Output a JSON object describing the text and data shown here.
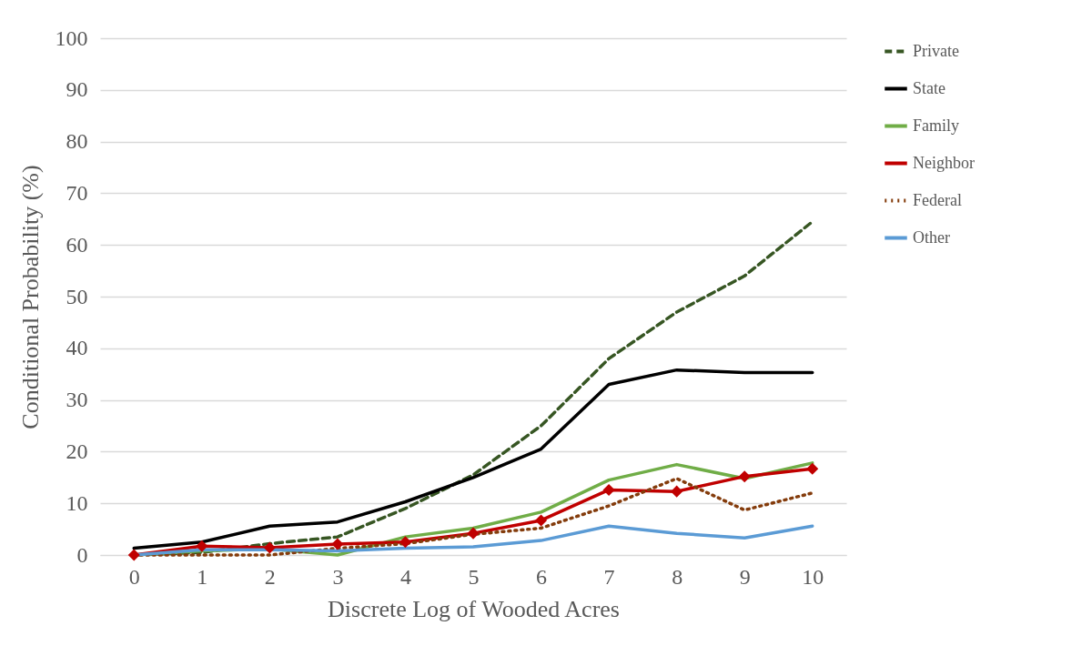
{
  "chart_data": {
    "type": "line",
    "xlabel": "Discrete Log of Wooded Acres",
    "ylabel": "Conditional Probability (%)",
    "categories": [
      "0",
      "1",
      "2",
      "3",
      "4",
      "5",
      "6",
      "7",
      "8",
      "9",
      "10"
    ],
    "ylim": [
      0,
      100
    ],
    "yticks": [
      0,
      10,
      20,
      30,
      40,
      50,
      60,
      70,
      80,
      90,
      100
    ],
    "grid": "y",
    "legend": "right",
    "series": [
      {
        "name": "Private",
        "color": "#375623",
        "line_style": "dashed",
        "values": [
          0,
          0.5,
          2.2,
          3.5,
          9,
          15.5,
          25,
          38,
          47,
          54,
          64.5
        ]
      },
      {
        "name": "State",
        "color": "#000000",
        "line_style": "solid",
        "values": [
          1.3,
          2.5,
          5.6,
          6.4,
          10.3,
          15,
          20.5,
          33,
          35.8,
          35.3,
          35.3
        ]
      },
      {
        "name": "Family",
        "color": "#70ad47",
        "line_style": "solid",
        "values": [
          0,
          0.8,
          1.2,
          0,
          3.5,
          5.2,
          8.3,
          14.5,
          17.5,
          14.8,
          17.8
        ]
      },
      {
        "name": "Neighbor",
        "color": "#c00000",
        "line_style": "solid",
        "marker": "diamond",
        "values": [
          0,
          1.7,
          1.4,
          2.1,
          2.5,
          4.2,
          6.7,
          12.6,
          12.3,
          15.2,
          16.7
        ]
      },
      {
        "name": "Federal",
        "color": "#843c0c",
        "line_style": "dotted",
        "values": [
          0,
          0,
          0,
          1.3,
          2.2,
          4,
          5.2,
          9.5,
          14.8,
          8.7,
          12
        ]
      },
      {
        "name": "Other",
        "color": "#5b9bd5",
        "line_style": "solid",
        "values": [
          0,
          1,
          1,
          0.8,
          1.3,
          1.6,
          2.8,
          5.6,
          4.2,
          3.3,
          5.6
        ]
      }
    ]
  }
}
